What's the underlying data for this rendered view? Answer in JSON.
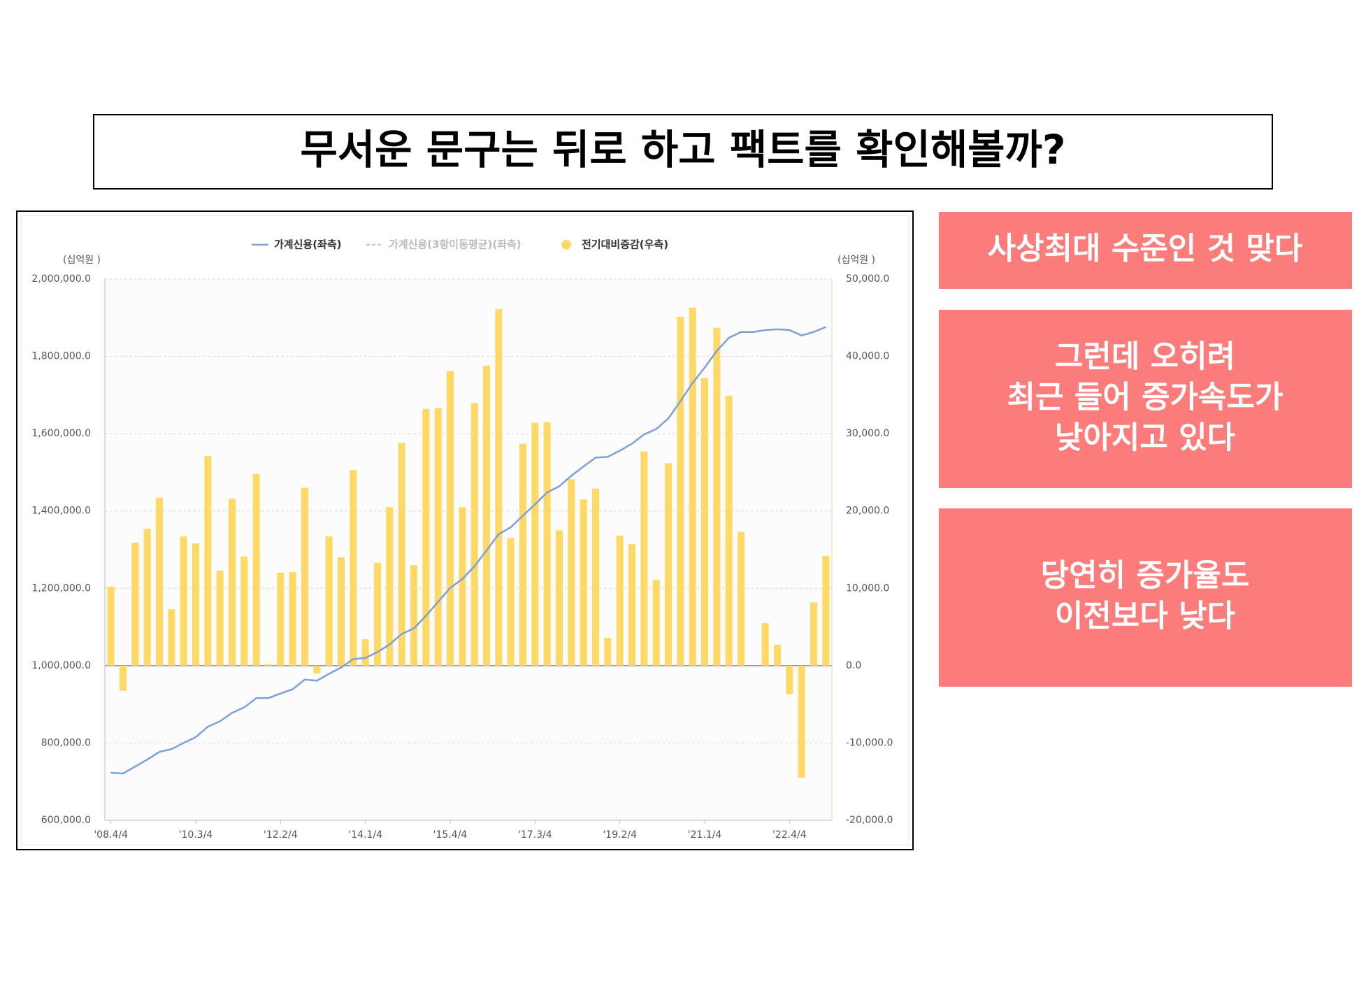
{
  "title": "무서운 문구는 뒤로 하고 팩트를 확인해볼까?",
  "chart_data": {
    "type": "bar_line",
    "ylabel": "(십억원 )",
    "y2label": "(십억원 )",
    "categories": [
      "'08.4/4",
      null,
      null,
      null,
      null,
      null,
      null,
      "'10.3/4",
      null,
      null,
      null,
      null,
      null,
      null,
      "'12.2/4",
      null,
      null,
      null,
      null,
      null,
      null,
      "'14.1/4",
      null,
      null,
      null,
      null,
      null,
      null,
      "'15.4/4",
      null,
      null,
      null,
      null,
      null,
      null,
      "'17.3/4",
      null,
      null,
      null,
      null,
      null,
      null,
      "'19.2/4",
      null,
      null,
      null,
      null,
      null,
      null,
      "'21.1/4",
      null,
      null,
      null,
      null,
      null,
      null,
      "'22.4/4",
      null,
      null,
      null
    ],
    "series": [
      {
        "name": "가계신용(좌측)",
        "type": "line",
        "color": "#7f9fd6",
        "values": [
          723000,
          721000,
          739000,
          757000,
          777000,
          784000,
          800000,
          815000,
          842000,
          856000,
          878000,
          892000,
          916000,
          916000,
          928000,
          939000,
          964000,
          961000,
          979000,
          995000,
          1017000,
          1020000,
          1035000,
          1055000,
          1082000,
          1096000,
          1129000,
          1165000,
          1201000,
          1224000,
          1257000,
          1298000,
          1340000,
          1358000,
          1388000,
          1417000,
          1448000,
          1464000,
          1491000,
          1515000,
          1538000,
          1540000,
          1556000,
          1574000,
          1598000,
          1612000,
          1639000,
          1684000,
          1731000,
          1771000,
          1814000,
          1848000,
          1863000,
          1863000,
          1868000,
          1870000,
          1868000,
          1854000,
          1863000,
          1876000
        ]
      },
      {
        "name": "가계신용(3항이동평균)(좌측)",
        "type": "line",
        "dashed": true,
        "visible": false,
        "color": "#c8c8c8",
        "values": [
          null,
          null,
          null,
          null,
          null,
          null,
          null,
          null,
          null,
          null,
          null,
          null,
          null,
          null,
          null,
          null,
          null,
          null,
          null,
          null,
          null,
          null,
          null,
          null,
          null,
          null,
          null,
          null,
          null,
          null,
          null,
          null,
          null,
          null,
          null,
          null,
          null,
          null,
          null,
          null,
          null,
          null,
          null,
          null,
          null,
          null,
          null,
          null,
          null,
          null,
          null,
          null,
          null,
          null,
          null,
          null,
          null,
          null,
          null,
          null
        ]
      },
      {
        "name": "전기대비증감(우측)",
        "type": "bar",
        "axis": "y2",
        "color": "#ffd966",
        "values": [
          10200,
          -3250,
          15900,
          17700,
          21700,
          7300,
          16700,
          15800,
          27100,
          12300,
          21600,
          14100,
          24800,
          200,
          12000,
          12100,
          23000,
          -1000,
          16700,
          14000,
          25300,
          3400,
          13300,
          20500,
          28800,
          13000,
          33200,
          33300,
          38100,
          20500,
          34000,
          38800,
          46100,
          16500,
          28700,
          31400,
          31500,
          17500,
          24100,
          21500,
          22900,
          3600,
          16800,
          15700,
          27700,
          11100,
          26200,
          45100,
          46300,
          37200,
          43700,
          34900,
          17300,
          0,
          5500,
          2700,
          -3700,
          -14500,
          8200,
          14200
        ]
      }
    ],
    "ylim": [
      600000,
      2000000
    ],
    "yticks": [
      {
        "value": 600000,
        "label": "600,000.0"
      },
      {
        "value": 800000,
        "label": "800,000.0"
      },
      {
        "value": 1000000,
        "label": "1,000,000.0"
      },
      {
        "value": 1200000,
        "label": "1,200,000.0"
      },
      {
        "value": 1400000,
        "label": "1,400,000.0"
      },
      {
        "value": 1600000,
        "label": "1,600,000.0"
      },
      {
        "value": 1800000,
        "label": "1,800,000.0"
      },
      {
        "value": 2000000,
        "label": "2,000,000.0"
      }
    ],
    "y2lim": [
      -20000,
      50000
    ],
    "y2ticks": [
      {
        "value": -20000,
        "label": "-20,000.0"
      },
      {
        "value": -10000,
        "label": "-10,000.0"
      },
      {
        "value": 0,
        "label": "0.0"
      },
      {
        "value": 10000,
        "label": "10,000.0"
      },
      {
        "value": 20000,
        "label": "20,000.0"
      },
      {
        "value": 30000,
        "label": "30,000.0"
      },
      {
        "value": 40000,
        "label": "40,000.0"
      },
      {
        "value": 50000,
        "label": "50,000.0"
      }
    ],
    "grid": true,
    "legend": "top"
  },
  "panels": [
    {
      "lines": [
        "사상최대 수준인 것 맞다"
      ]
    },
    {
      "lines": [
        "그런데 오히려",
        "최근 들어 증가속도가",
        "낮아지고 있다"
      ]
    },
    {
      "lines": [
        "당연히 증가율도",
        "이전보다 낮다"
      ]
    }
  ]
}
